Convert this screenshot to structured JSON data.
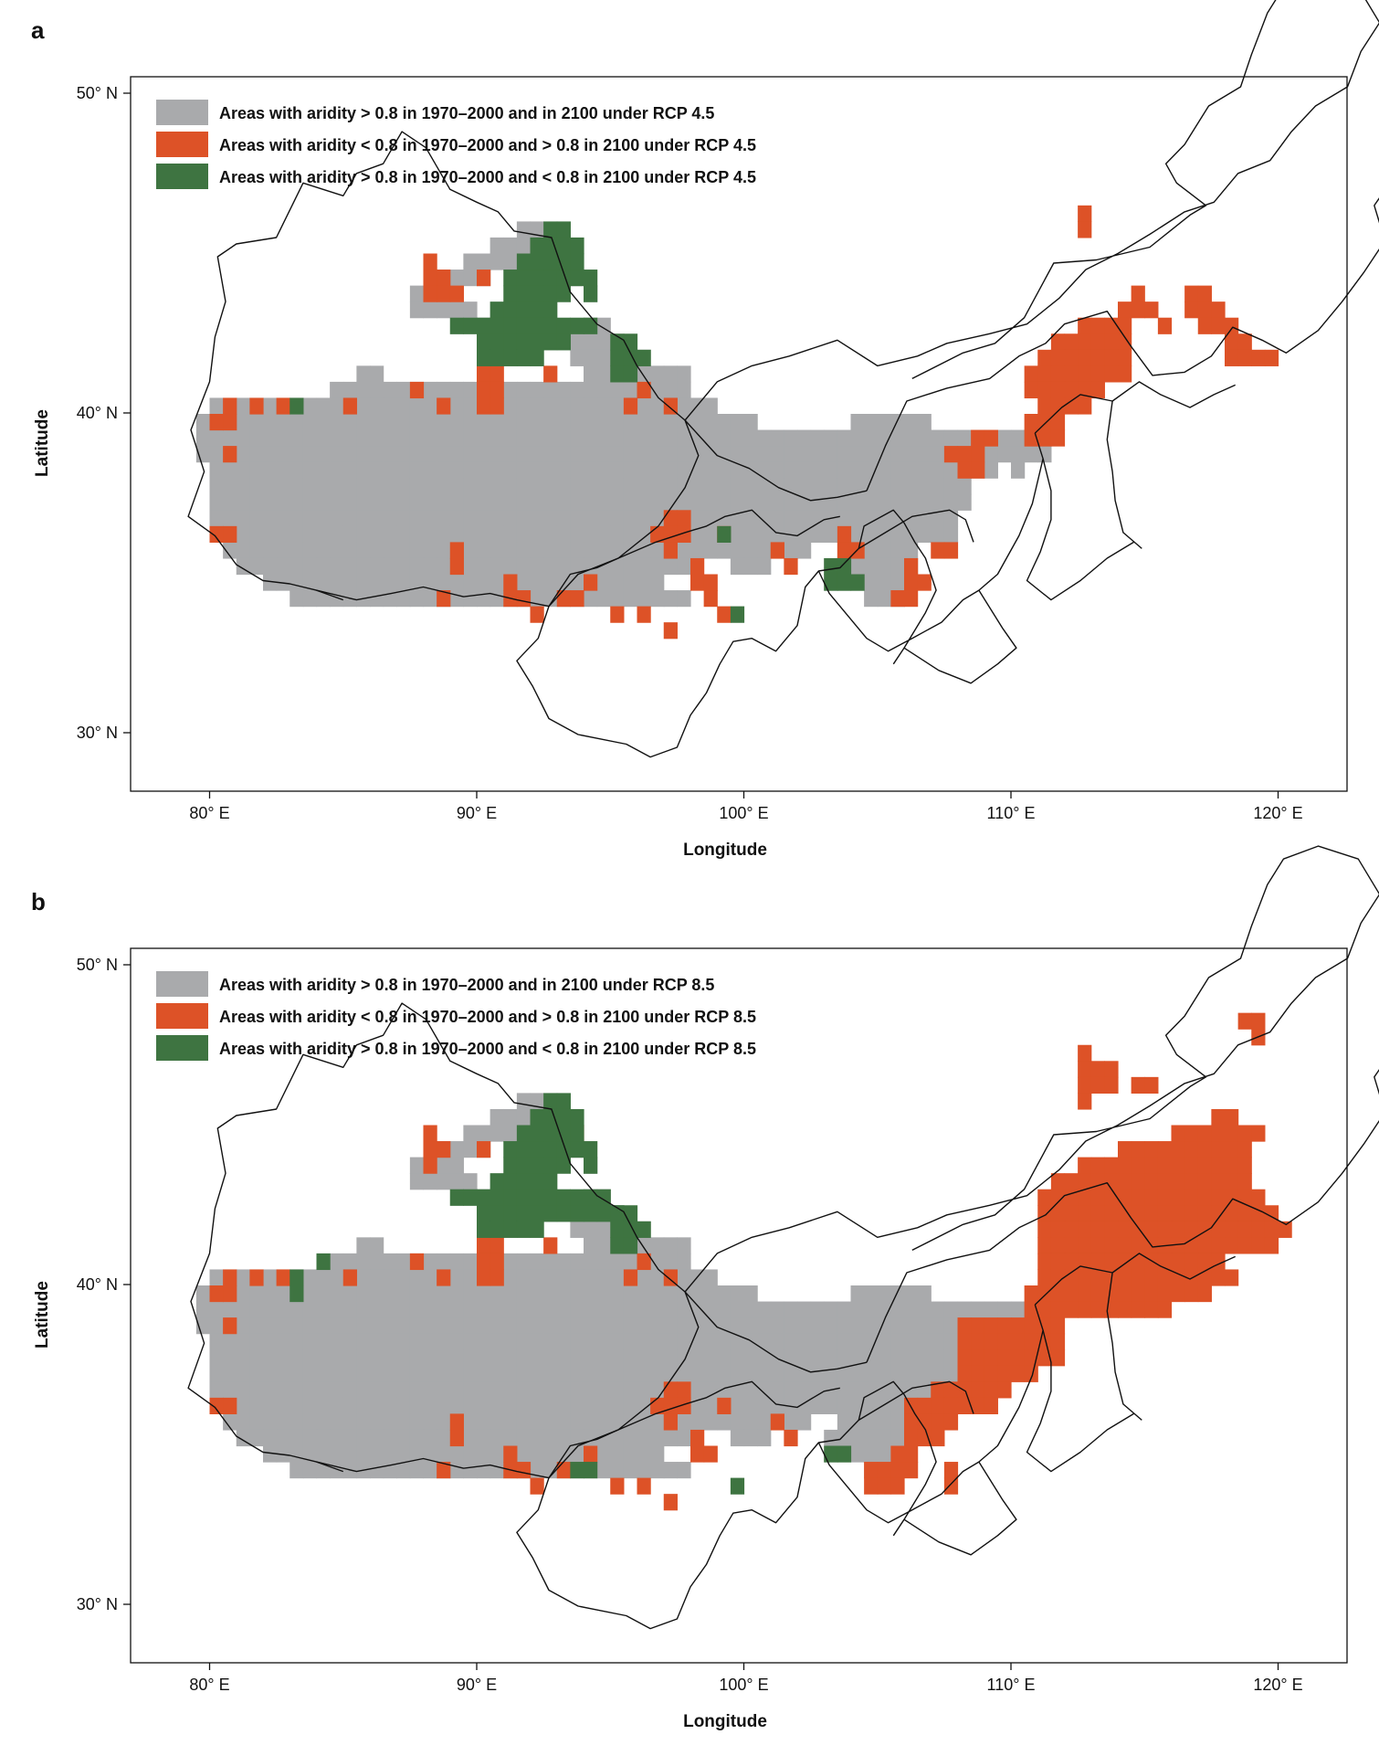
{
  "colors": {
    "gray": "#a9aaac",
    "orange": "#dd5227",
    "green": "#3e7441",
    "border": "#111111"
  },
  "panels": [
    {
      "letter": "a",
      "legend": [
        {
          "color_key": "gray",
          "label": "Areas with aridity > 0.8 in 1970–2000 and in 2100 under RCP 4.5"
        },
        {
          "color_key": "orange",
          "label": "Areas with aridity < 0.8 in 1970–2000 and > 0.8 in 2100 under RCP 4.5"
        },
        {
          "color_key": "green",
          "label": "Areas with aridity > 0.8 in 1970–2000 and < 0.8 in 2100 under RCP 4.5"
        }
      ],
      "xlabel": "Longitude",
      "ylabel": "Latitude",
      "xticks": [
        "80° E",
        "90° E",
        "100° E",
        "110° E",
        "120° E"
      ],
      "yticks": [
        "30° N",
        "40° N",
        "50° N"
      ]
    },
    {
      "letter": "b",
      "legend": [
        {
          "color_key": "gray",
          "label": "Areas with aridity > 0.8 in 1970–2000 and in 2100 under RCP 8.5"
        },
        {
          "color_key": "orange",
          "label": "Areas with aridity < 0.8 in 1970–2000 and > 0.8 in 2100 under RCP 8.5"
        },
        {
          "color_key": "green",
          "label": "Areas with aridity > 0.8 in 1970–2000 and < 0.8 in 2100 under RCP 8.5"
        }
      ],
      "xlabel": "Longitude",
      "ylabel": "Latitude",
      "xticks": [
        "80° E",
        "90° E",
        "100° E",
        "110° E",
        "120° E"
      ],
      "yticks": [
        "30° N",
        "40° N",
        "50° N"
      ]
    }
  ]
}
